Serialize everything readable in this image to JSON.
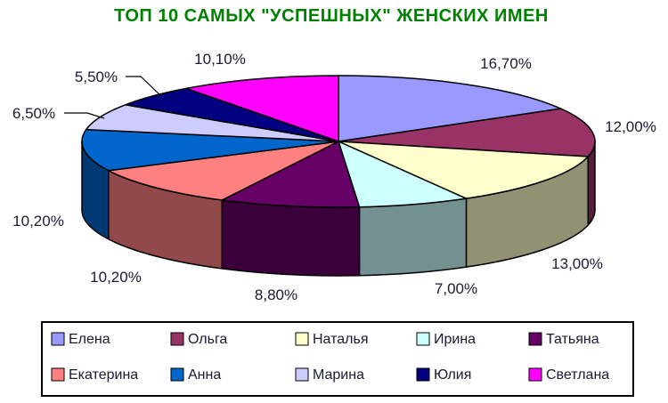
{
  "page": {
    "background": "#FFFFFF"
  },
  "chart_data": {
    "type": "pie",
    "is_3d": true,
    "title": "ТОП 10 САМЫХ \"УСПЕШНЫХ\" ЖЕНСКИХ ИМЕН",
    "title_color": "#008000",
    "label_color": "#1A1A33",
    "outline_color": "#000000",
    "start_angle_deg": 0,
    "direction": "clockwise",
    "decimal_separator": ",",
    "legend_position": "bottom",
    "legend_rows": 2,
    "legend_border_color": "#000000",
    "legend_background": "#FFFFFF",
    "series": [
      {
        "name": "Елена",
        "value": 16.7,
        "label": "16,70%",
        "color": "#9999FF"
      },
      {
        "name": "Ольга",
        "value": 12.0,
        "label": "12,00%",
        "color": "#993366"
      },
      {
        "name": "Наталья",
        "value": 13.0,
        "label": "13,00%",
        "color": "#FFFFCC"
      },
      {
        "name": "Ирина",
        "value": 7.0,
        "label": "7,00%",
        "color": "#CCFFFF"
      },
      {
        "name": "Татьяна",
        "value": 8.8,
        "label": "8,80%",
        "color": "#660066"
      },
      {
        "name": "Екатерина",
        "value": 10.2,
        "label": "10,20%",
        "color": "#FF8080"
      },
      {
        "name": "Анна",
        "value": 10.2,
        "label": "10,20%",
        "color": "#0066CC"
      },
      {
        "name": "Марина",
        "value": 6.5,
        "label": "6,50%",
        "color": "#CCCCFF"
      },
      {
        "name": "Юлия",
        "value": 5.5,
        "label": "5,50%",
        "color": "#000080"
      },
      {
        "name": "Светлана",
        "value": 10.1,
        "label": "10,10%",
        "color": "#FF00FF"
      }
    ]
  }
}
